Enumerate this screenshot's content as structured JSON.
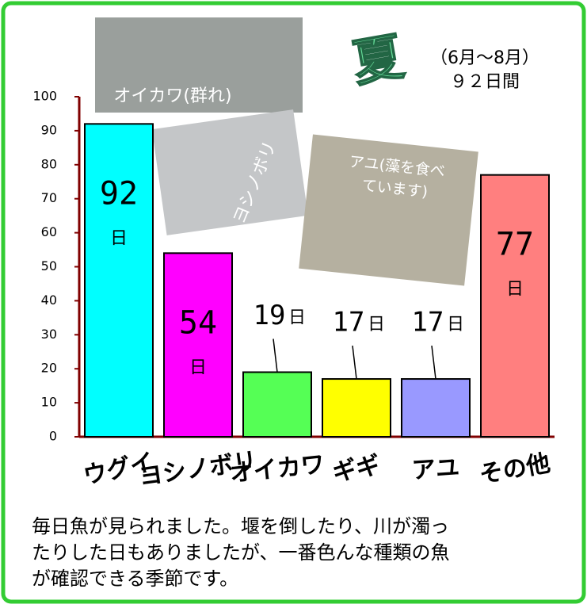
{
  "chart_data": {
    "type": "bar",
    "categories": [
      "ウグイ",
      "ヨシノボリ",
      "オイカワ",
      "ギギ",
      "アユ",
      "その他"
    ],
    "values": [
      92,
      54,
      19,
      17,
      17,
      77
    ],
    "value_unit": "日",
    "colors": [
      "#00ffff",
      "#ff00ff",
      "#55ff55",
      "#ffff00",
      "#9999ff",
      "#ff7f7f"
    ],
    "ylim": [
      0,
      100
    ],
    "yticks": [
      0,
      10,
      20,
      30,
      40,
      50,
      60,
      70,
      80,
      90,
      100
    ],
    "grid": false
  },
  "season": {
    "name": "夏",
    "period": "（6月～8月）",
    "days": "９２日間"
  },
  "photos": [
    {
      "label": "オイカワ(群れ)"
    },
    {
      "label": "ヨシノボリ"
    },
    {
      "label": "アユ(藻を食べ",
      "label2": "ています)"
    }
  ],
  "caption": [
    "毎日魚が見られました。堰を倒したり、川が濁っ",
    "たりした日もありましたが、一番色んな種類の魚",
    "が確認できる季節です。"
  ]
}
